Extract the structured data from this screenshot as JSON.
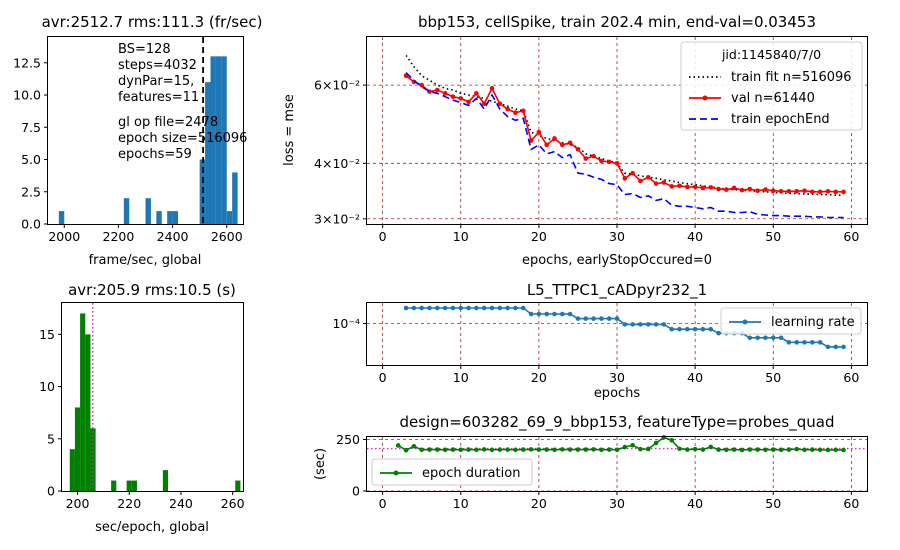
{
  "chart_data": [
    {
      "id": "hist_fps",
      "type": "bar",
      "title": "avr:2512.7 rms:111.3 (fr/sec)",
      "xlabel": "frame/sec,  global",
      "ylabel": "",
      "xlim": [
        1940,
        2660
      ],
      "ylim": [
        0,
        14.5
      ],
      "xticks": [
        {
          "v": 2000,
          "label": "2000"
        },
        {
          "v": 2200,
          "label": "2200"
        },
        {
          "v": 2400,
          "label": "2400"
        },
        {
          "v": 2600,
          "label": "2600"
        }
      ],
      "yticks": [
        {
          "v": 0,
          "label": "0.0"
        },
        {
          "v": 2.5,
          "label": "2.5"
        },
        {
          "v": 5,
          "label": "5.0"
        },
        {
          "v": 7.5,
          "label": "7.5"
        },
        {
          "v": 10,
          "label": "10.0"
        },
        {
          "v": 12.5,
          "label": "12.5"
        }
      ],
      "bar_width": 20,
      "bar_color": "#1f77b4",
      "bins": [
        {
          "x": 1980,
          "count": 1
        },
        {
          "x": 2220,
          "count": 2
        },
        {
          "x": 2300,
          "count": 2
        },
        {
          "x": 2340,
          "count": 1
        },
        {
          "x": 2380,
          "count": 1
        },
        {
          "x": 2400,
          "count": 1
        },
        {
          "x": 2500,
          "count": 5
        },
        {
          "x": 2520,
          "count": 11
        },
        {
          "x": 2540,
          "count": 13
        },
        {
          "x": 2560,
          "count": 13
        },
        {
          "x": 2580,
          "count": 13
        },
        {
          "x": 2600,
          "count": 1
        },
        {
          "x": 2620,
          "count": 4
        }
      ],
      "mean_line": {
        "x": 2512.7,
        "style": "dashed",
        "color": "#000000"
      },
      "annotations": [
        "BS=128",
        "steps=4032",
        "dynPar=15,",
        "features=11",
        "",
        "gl op file=2478",
        "epoch size=516096",
        "epochs=59"
      ]
    },
    {
      "id": "loss",
      "type": "line",
      "title": "bbp153, cellSpike, train 202.4 min, end-val=0.03453",
      "xlabel": "epochs, earlyStopOccured=0",
      "ylabel": "loss = mse",
      "yscale": "log",
      "xlim": [
        -2,
        62
      ],
      "ylim": [
        0.0292,
        0.077
      ],
      "grid": true,
      "grid_color": "#b22222",
      "xticks": [
        {
          "v": 0,
          "label": "0"
        },
        {
          "v": 10,
          "label": "10"
        },
        {
          "v": 20,
          "label": "20"
        },
        {
          "v": 30,
          "label": "30"
        },
        {
          "v": 40,
          "label": "40"
        },
        {
          "v": 50,
          "label": "50"
        },
        {
          "v": 60,
          "label": "60"
        }
      ],
      "yticks": [
        {
          "v": 0.06,
          "label": "6×10⁻²"
        },
        {
          "v": 0.04,
          "label": "4×10⁻²"
        },
        {
          "v": 0.03,
          "label": "3×10⁻²"
        }
      ],
      "legend": {
        "title": "jid:1145840/7/0",
        "position": "upper-right",
        "entries": [
          "train fit n=516096",
          "val n=61440",
          "train epochEnd"
        ]
      },
      "x": [
        3,
        4,
        5,
        6,
        7,
        8,
        9,
        10,
        11,
        12,
        13,
        14,
        15,
        16,
        17,
        18,
        19,
        20,
        21,
        22,
        23,
        24,
        25,
        26,
        27,
        28,
        29,
        30,
        31,
        32,
        33,
        34,
        35,
        36,
        37,
        38,
        39,
        40,
        41,
        42,
        43,
        44,
        45,
        46,
        47,
        48,
        49,
        50,
        51,
        52,
        53,
        54,
        55,
        56,
        57,
        58,
        59
      ],
      "series": [
        {
          "name": "train fit n=516096",
          "color": "#000000",
          "style": "dotted",
          "values": [
            0.07,
            0.066,
            0.063,
            0.0615,
            0.06,
            0.059,
            0.0585,
            0.0575,
            0.057,
            0.0565,
            0.056,
            0.0552,
            0.0545,
            0.0538,
            0.053,
            0.0525,
            0.047,
            0.0462,
            0.0455,
            0.045,
            0.0445,
            0.044,
            0.0435,
            0.042,
            0.0415,
            0.041,
            0.0405,
            0.04,
            0.038,
            0.0378,
            0.0375,
            0.0372,
            0.037,
            0.0367,
            0.0365,
            0.0362,
            0.036,
            0.0358,
            0.0356,
            0.0354,
            0.0352,
            0.035,
            0.0349,
            0.0348,
            0.0347,
            0.0346,
            0.0345,
            0.0344,
            0.0343,
            0.0342,
            0.0342,
            0.0341,
            0.0341,
            0.034,
            0.034,
            0.0339,
            0.0339
          ]
        },
        {
          "name": "val n=61440",
          "color": "#ff0000",
          "style": "solid-dot",
          "values": [
            0.063,
            0.061,
            0.06,
            0.058,
            0.0585,
            0.0575,
            0.0565,
            0.056,
            0.055,
            0.0575,
            0.0545,
            0.059,
            0.0545,
            0.053,
            0.052,
            0.0525,
            0.045,
            0.047,
            0.044,
            0.0455,
            0.044,
            0.0445,
            0.043,
            0.041,
            0.0415,
            0.0405,
            0.0403,
            0.04,
            0.037,
            0.038,
            0.0365,
            0.0372,
            0.036,
            0.0362,
            0.0355,
            0.0356,
            0.0354,
            0.0354,
            0.0352,
            0.0353,
            0.035,
            0.0349,
            0.0352,
            0.0348,
            0.035,
            0.0347,
            0.0349,
            0.0347,
            0.0346,
            0.0346,
            0.0346,
            0.0347,
            0.0345,
            0.0345,
            0.0346,
            0.0345,
            0.0345
          ]
        },
        {
          "name": "train epochEnd",
          "color": "#0000ff",
          "style": "dashed",
          "values": [
            0.064,
            0.0615,
            0.0595,
            0.058,
            0.0575,
            0.0565,
            0.0555,
            0.0548,
            0.054,
            0.056,
            0.053,
            0.057,
            0.053,
            0.051,
            0.05,
            0.0505,
            0.043,
            0.044,
            0.042,
            0.0425,
            0.0412,
            0.0418,
            0.038,
            0.0378,
            0.0372,
            0.0368,
            0.036,
            0.0358,
            0.034,
            0.0342,
            0.0335,
            0.0338,
            0.033,
            0.0333,
            0.0322,
            0.032,
            0.032,
            0.0318,
            0.0316,
            0.0318,
            0.0312,
            0.0312,
            0.031,
            0.031,
            0.0311,
            0.0307,
            0.0306,
            0.0305,
            0.0305,
            0.0304,
            0.0304,
            0.0304,
            0.0303,
            0.0303,
            0.0302,
            0.0302,
            0.0302
          ]
        }
      ]
    },
    {
      "id": "hist_epoch",
      "type": "bar",
      "title": "avr:205.9 rms:10.5 (s)",
      "xlabel": "sec/epoch,  global",
      "ylabel": "",
      "xlim": [
        194,
        264
      ],
      "ylim": [
        0,
        18
      ],
      "xticks": [
        {
          "v": 200,
          "label": "200"
        },
        {
          "v": 220,
          "label": "220"
        },
        {
          "v": 240,
          "label": "240"
        },
        {
          "v": 260,
          "label": "260"
        }
      ],
      "yticks": [
        {
          "v": 0,
          "label": "0"
        },
        {
          "v": 5,
          "label": "5"
        },
        {
          "v": 10,
          "label": "10"
        },
        {
          "v": 15,
          "label": "15"
        }
      ],
      "bar_width": 2,
      "bar_color": "#008000",
      "bins": [
        {
          "x": 197,
          "count": 4
        },
        {
          "x": 199,
          "count": 8
        },
        {
          "x": 201,
          "count": 17
        },
        {
          "x": 203,
          "count": 15
        },
        {
          "x": 205,
          "count": 6
        },
        {
          "x": 213,
          "count": 1
        },
        {
          "x": 219,
          "count": 1
        },
        {
          "x": 221,
          "count": 1
        },
        {
          "x": 233,
          "count": 2
        },
        {
          "x": 261,
          "count": 1
        }
      ],
      "mean_line": {
        "x": 205.9,
        "style": "dotted",
        "color": "#ff00ff"
      }
    },
    {
      "id": "lr",
      "type": "line",
      "title": "L5_TTPC1_cADpyr232_1",
      "xlabel": "epochs",
      "ylabel": "",
      "yscale": "log",
      "xlim": [
        -2,
        62
      ],
      "ylim": [
        4.85e-05,
        0.000143
      ],
      "grid": true,
      "grid_color": "#b22222",
      "xticks": [
        {
          "v": 0,
          "label": "0"
        },
        {
          "v": 10,
          "label": "10"
        },
        {
          "v": 20,
          "label": "20"
        },
        {
          "v": 30,
          "label": "30"
        },
        {
          "v": 40,
          "label": "40"
        },
        {
          "v": 50,
          "label": "50"
        },
        {
          "v": 60,
          "label": "60"
        }
      ],
      "yticks": [
        {
          "v": 0.0001,
          "label": "10⁻⁴"
        }
      ],
      "legend": {
        "title": "",
        "position": "upper-right",
        "entries": [
          "learning rate"
        ]
      },
      "x": [
        3,
        4,
        5,
        6,
        7,
        8,
        9,
        10,
        11,
        12,
        13,
        14,
        15,
        16,
        17,
        18,
        19,
        20,
        21,
        22,
        23,
        24,
        25,
        26,
        27,
        28,
        29,
        30,
        31,
        32,
        33,
        34,
        35,
        36,
        37,
        38,
        39,
        40,
        41,
        42,
        43,
        44,
        45,
        46,
        47,
        48,
        49,
        50,
        51,
        52,
        53,
        54,
        55,
        56,
        57,
        58,
        59
      ],
      "series": [
        {
          "name": "learning rate",
          "color": "#1f77b4",
          "style": "solid-dot",
          "values": [
            0.000131,
            0.000131,
            0.000131,
            0.000131,
            0.000131,
            0.000131,
            0.000131,
            0.000131,
            0.000131,
            0.000131,
            0.000131,
            0.000131,
            0.000131,
            0.000131,
            0.000131,
            0.000131,
            0.000118,
            0.000118,
            0.000118,
            0.000118,
            0.000118,
            0.000118,
            0.000109,
            0.000109,
            0.000109,
            0.000109,
            0.000109,
            0.000109,
            9.85e-05,
            9.85e-05,
            9.85e-05,
            9.85e-05,
            9.85e-05,
            9.85e-05,
            9.05e-05,
            9.05e-05,
            9.05e-05,
            9.05e-05,
            9.05e-05,
            9.05e-05,
            8.45e-05,
            8.45e-05,
            8.45e-05,
            8.45e-05,
            7.8e-05,
            7.8e-05,
            7.8e-05,
            7.8e-05,
            7.8e-05,
            7.2e-05,
            7.2e-05,
            7.2e-05,
            7.2e-05,
            7.2e-05,
            6.65e-05,
            6.65e-05,
            6.65e-05
          ]
        }
      ]
    },
    {
      "id": "duration",
      "type": "line",
      "title": "design=603282_69_9_bbp153, featureType=probes_quad",
      "xlabel": "",
      "ylabel": "(sec)",
      "xlim": [
        -2,
        62
      ],
      "ylim": [
        0,
        262
      ],
      "grid": true,
      "grid_color": "#b22222",
      "xticks": [
        {
          "v": 0,
          "label": "0"
        },
        {
          "v": 10,
          "label": "10"
        },
        {
          "v": 20,
          "label": "20"
        },
        {
          "v": 30,
          "label": "30"
        },
        {
          "v": 40,
          "label": "40"
        },
        {
          "v": 50,
          "label": "50"
        },
        {
          "v": 60,
          "label": "60"
        }
      ],
      "yticks": [
        {
          "v": 0,
          "label": "0"
        },
        {
          "v": 250,
          "label": "250"
        }
      ],
      "hline": {
        "y": 205.9,
        "color": "#ff00ff",
        "style": "dotted"
      },
      "legend": {
        "title": "",
        "position": "lower-left",
        "entries": [
          "epoch duration"
        ]
      },
      "x": [
        2,
        3,
        4,
        5,
        6,
        7,
        8,
        9,
        10,
        11,
        12,
        13,
        14,
        15,
        16,
        17,
        18,
        19,
        20,
        21,
        22,
        23,
        24,
        25,
        26,
        27,
        28,
        29,
        30,
        31,
        32,
        33,
        34,
        35,
        36,
        37,
        38,
        39,
        40,
        41,
        42,
        43,
        44,
        45,
        46,
        47,
        48,
        49,
        50,
        51,
        52,
        53,
        54,
        55,
        56,
        57,
        58,
        59
      ],
      "series": [
        {
          "name": "epoch duration",
          "color": "#008000",
          "style": "solid-dot",
          "values": [
            221,
            198,
            217,
            200,
            201,
            201,
            200,
            201,
            200,
            201,
            200,
            202,
            200,
            201,
            201,
            200,
            201,
            202,
            201,
            201,
            200,
            202,
            201,
            201,
            201,
            202,
            200,
            201,
            200,
            213,
            222,
            203,
            204,
            233,
            260,
            246,
            205,
            201,
            203,
            201,
            214,
            201,
            200,
            201,
            199,
            201,
            201,
            200,
            201,
            200,
            201,
            203,
            200,
            201,
            200,
            199,
            200,
            199
          ]
        }
      ]
    }
  ]
}
